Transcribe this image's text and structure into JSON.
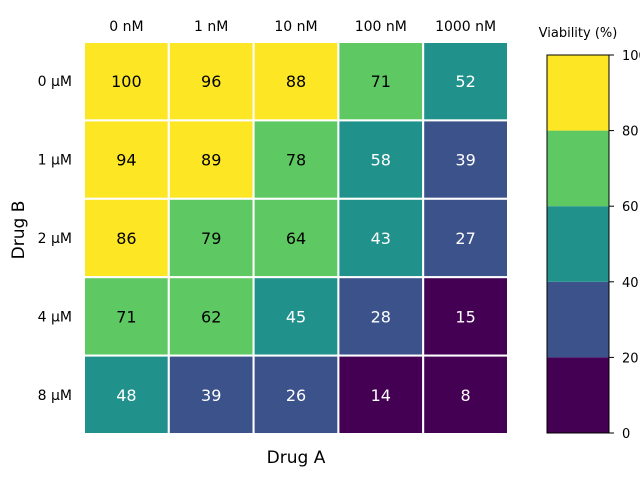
{
  "chart_data": {
    "type": "heatmap",
    "title": "",
    "xlabel": "Drug A",
    "ylabel": "Drug B",
    "x_categories": [
      "0 nM",
      "1 nM",
      "10 nM",
      "100 nM",
      "1000 nM"
    ],
    "y_categories": [
      "0 µM",
      "1 µM",
      "2 µM",
      "4 µM",
      "8 µM"
    ],
    "values": [
      [
        100,
        96,
        88,
        71,
        52
      ],
      [
        94,
        89,
        78,
        58,
        39
      ],
      [
        86,
        79,
        64,
        43,
        27
      ],
      [
        71,
        62,
        45,
        28,
        15
      ],
      [
        48,
        39,
        26,
        14,
        8
      ]
    ],
    "colorbar": {
      "title": "Viability (%)",
      "range": [
        0,
        100
      ],
      "ticks": [
        "0",
        "20",
        "40",
        "60",
        "80",
        "100"
      ],
      "bins": [
        {
          "from": 0,
          "to": 20,
          "color": "#440154"
        },
        {
          "from": 20,
          "to": 40,
          "color": "#3b528b"
        },
        {
          "from": 40,
          "to": 60,
          "color": "#21918c"
        },
        {
          "from": 60,
          "to": 80,
          "color": "#5ec962"
        },
        {
          "from": 80,
          "to": 100,
          "color": "#fde725"
        }
      ],
      "placement": "right"
    }
  },
  "colors": {
    "light_text": "#ffffff",
    "dark_text": "#000000",
    "cell_border": "#ffffff"
  }
}
